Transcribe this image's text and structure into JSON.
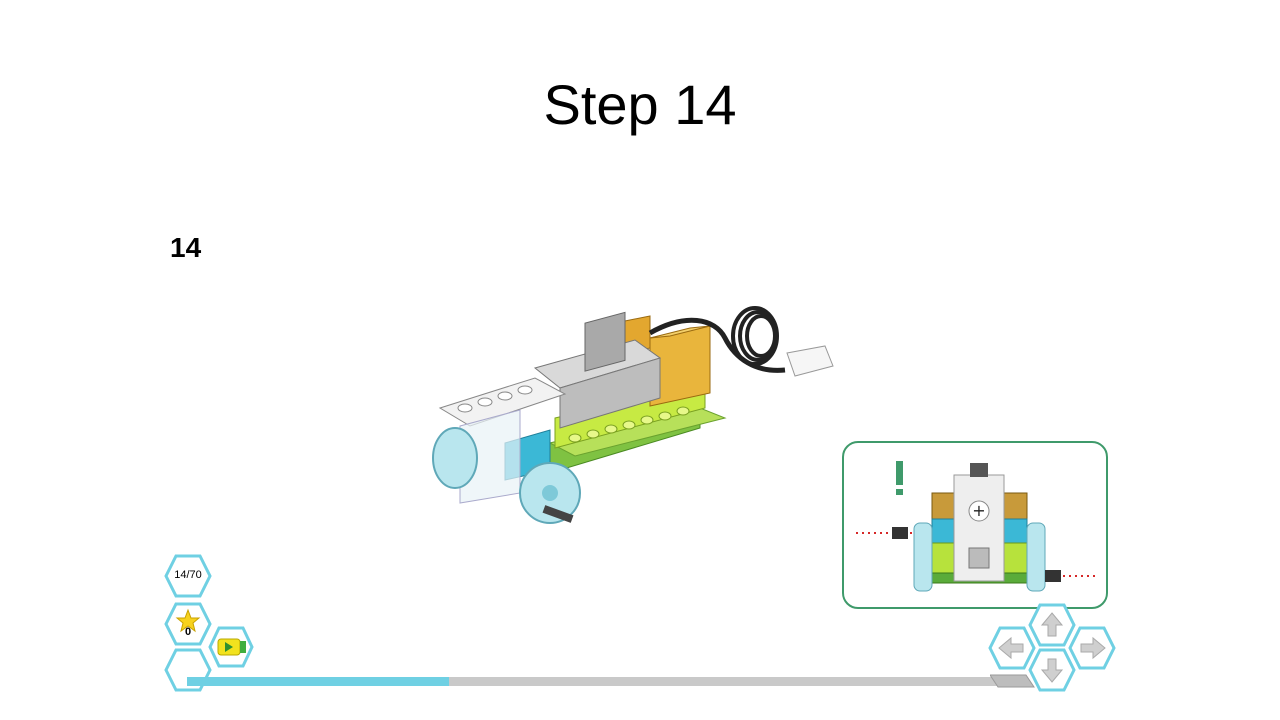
{
  "slide": {
    "title": "Step 14"
  },
  "step": {
    "number": "14"
  },
  "hud": {
    "step_counter": "14/70",
    "score": "0"
  },
  "progress": {
    "value": 0.323
  },
  "colors": {
    "accent": "#6fd0e3",
    "hex_border": "#6fd0e3",
    "callout_border": "#3f9a6b",
    "track": "#c9c9c9"
  },
  "icons": {
    "step_counter": "step-counter-icon",
    "score": "sparkle-icon",
    "play": "play-icon",
    "empty": "blank-hex-icon",
    "up": "arrow-up-icon",
    "left": "arrow-left-icon",
    "right": "arrow-right-icon",
    "down": "arrow-down-icon"
  }
}
